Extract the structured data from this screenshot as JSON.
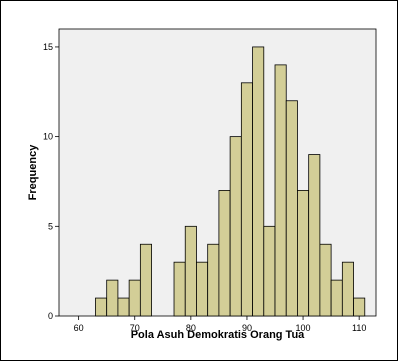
{
  "colors": {
    "plot_background": "#f0f0f0",
    "bar_fill": "#d3ce97",
    "bar_stroke": "#000000"
  },
  "chart_data": {
    "type": "bar",
    "subtype": "histogram",
    "title": "",
    "xlabel": "Pola Asuh Demokratis Orang Tua",
    "ylabel": "Frequency",
    "xlim": [
      56.5,
      113
    ],
    "ylim": [
      0,
      16
    ],
    "xticks": [
      60,
      70,
      80,
      90,
      100,
      110
    ],
    "yticks": [
      0,
      5,
      10,
      15
    ],
    "bin_width": 2,
    "bins": [
      {
        "start": 63,
        "end": 65,
        "count": 1
      },
      {
        "start": 65,
        "end": 67,
        "count": 2
      },
      {
        "start": 67,
        "end": 69,
        "count": 1
      },
      {
        "start": 69,
        "end": 71,
        "count": 2
      },
      {
        "start": 71,
        "end": 73,
        "count": 4
      },
      {
        "start": 73,
        "end": 75,
        "count": 0
      },
      {
        "start": 75,
        "end": 77,
        "count": 0
      },
      {
        "start": 77,
        "end": 79,
        "count": 3
      },
      {
        "start": 79,
        "end": 81,
        "count": 5
      },
      {
        "start": 81,
        "end": 83,
        "count": 3
      },
      {
        "start": 83,
        "end": 85,
        "count": 4
      },
      {
        "start": 85,
        "end": 87,
        "count": 7
      },
      {
        "start": 87,
        "end": 89,
        "count": 10
      },
      {
        "start": 89,
        "end": 91,
        "count": 13
      },
      {
        "start": 91,
        "end": 93,
        "count": 15
      },
      {
        "start": 93,
        "end": 95,
        "count": 5
      },
      {
        "start": 95,
        "end": 97,
        "count": 14
      },
      {
        "start": 97,
        "end": 99,
        "count": 12
      },
      {
        "start": 99,
        "end": 101,
        "count": 7
      },
      {
        "start": 101,
        "end": 103,
        "count": 9
      },
      {
        "start": 103,
        "end": 105,
        "count": 4
      },
      {
        "start": 105,
        "end": 107,
        "count": 2
      },
      {
        "start": 107,
        "end": 109,
        "count": 3
      },
      {
        "start": 109,
        "end": 111,
        "count": 1
      }
    ],
    "grid": false,
    "legend": "none"
  }
}
